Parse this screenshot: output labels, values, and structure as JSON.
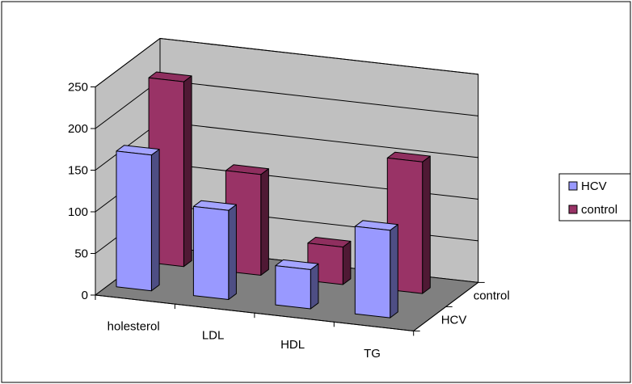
{
  "chart_data": {
    "type": "bar",
    "style": "3d-clustered-depth",
    "categories": [
      "holesterol",
      "LDL",
      "HDL",
      "TG"
    ],
    "series": [
      {
        "name": "HCV",
        "values": [
          163,
          107,
          47,
          105
        ],
        "color": "#9999ff",
        "side_color": "#4e4e84",
        "top_color": "#a4a4ff"
      },
      {
        "name": "control",
        "values": [
          222,
          121,
          45,
          158
        ],
        "color": "#993366",
        "side_color": "#4f1934",
        "top_color": "#8f2f5f"
      }
    ],
    "depth_labels": [
      "HCV",
      "control"
    ],
    "y_ticks": [
      "0",
      "50",
      "100",
      "150",
      "200",
      "250"
    ],
    "ylim": [
      0,
      250
    ],
    "grid": true,
    "legend": {
      "position": "right",
      "entries": [
        "HCV",
        "control"
      ]
    },
    "colors": {
      "walls": "#c0c0c0",
      "floor": "#808080",
      "gridline": "#000000"
    }
  }
}
